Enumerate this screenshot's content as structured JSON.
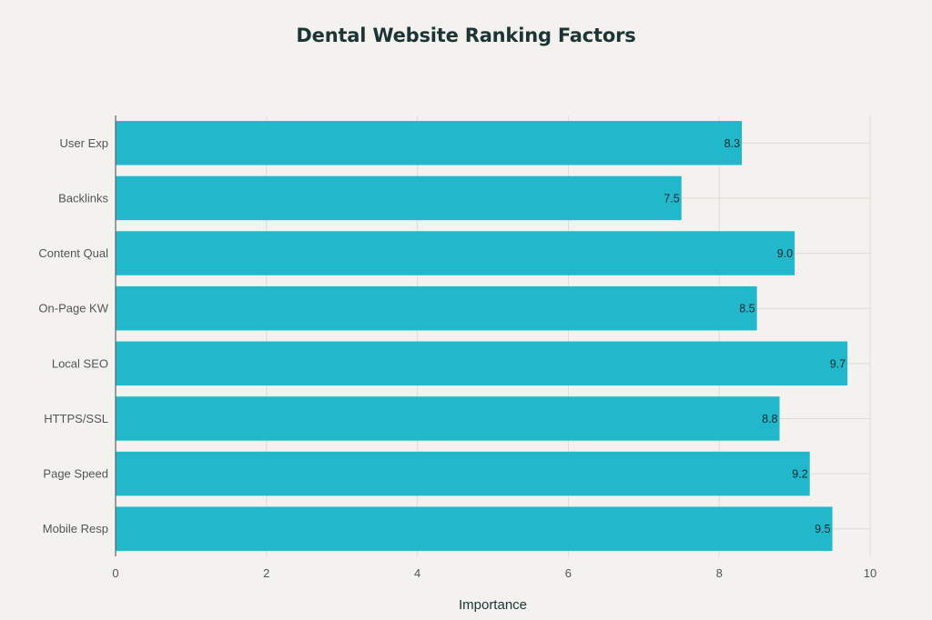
{
  "chart_data": {
    "type": "bar",
    "orientation": "horizontal",
    "title": "Dental Website Ranking Factors",
    "xlabel": "Importance",
    "ylabel": "",
    "xlim": [
      0,
      10
    ],
    "x_ticks": [
      0,
      2,
      4,
      6,
      8,
      10
    ],
    "categories": [
      "User Exp",
      "Backlinks",
      "Content Qual",
      "On-Page KW",
      "Local SEO",
      "HTTPS/SSL",
      "Page Speed",
      "Mobile Resp"
    ],
    "values": [
      8.3,
      7.5,
      9.0,
      8.5,
      9.7,
      8.8,
      9.2,
      9.5
    ],
    "value_labels": [
      "8.3",
      "7.5",
      "9.0",
      "8.5",
      "9.7",
      "8.8",
      "9.2",
      "9.5"
    ],
    "bar_color": "#22b8cc",
    "grid": true,
    "legend": "none"
  }
}
